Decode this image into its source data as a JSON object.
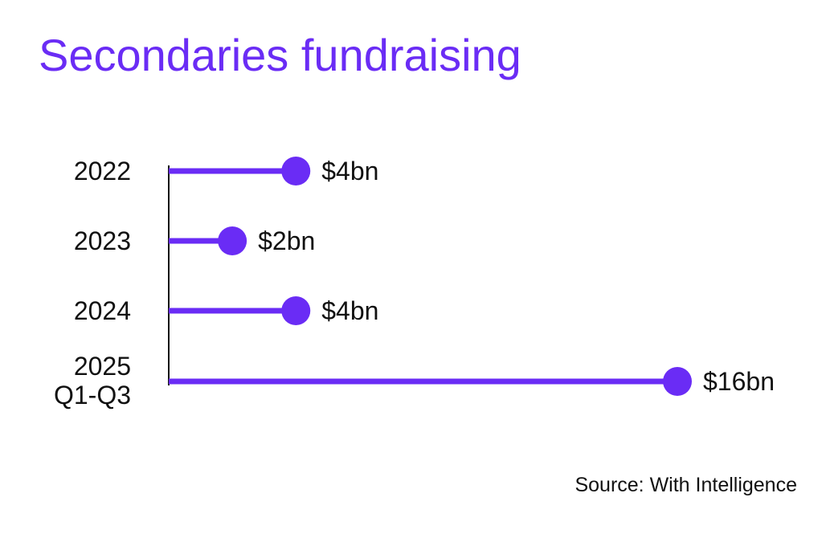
{
  "title": "Secondaries fundraising",
  "source": "Source: With Intelligence",
  "colors": {
    "accent": "#6a2cf5",
    "axis": "#111111",
    "text": "#111111"
  },
  "chart_data": {
    "type": "bar",
    "orientation": "horizontal",
    "style": "lollipop",
    "title": "Secondaries fundraising",
    "categories": [
      [
        "2022"
      ],
      [
        "2023"
      ],
      [
        "2024"
      ],
      [
        "2025",
        "Q1-Q3"
      ]
    ],
    "values": [
      4,
      2,
      4,
      16
    ],
    "data_labels": [
      "$4bn",
      "$2bn",
      "$4bn",
      "$16bn"
    ],
    "unit": "bn USD",
    "xlim": [
      0,
      16
    ],
    "grid": false,
    "legend": "none"
  }
}
